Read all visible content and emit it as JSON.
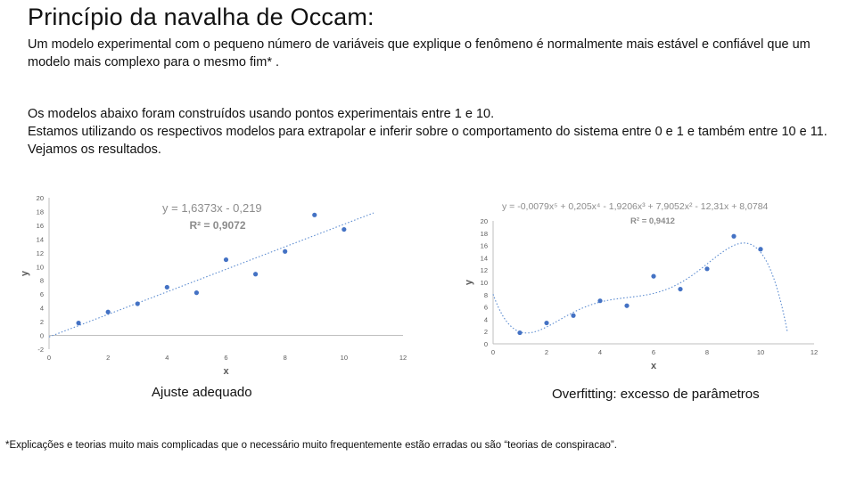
{
  "slide": {
    "title": "Princípio da navalha de Occam:",
    "paragraph1": "Um modelo experimental com o pequeno número de variáveis que explique o fenômeno é normalmente mais estável e confiável que um modelo mais complexo para o mesmo fim* .",
    "paragraph2_line1": "Os modelos abaixo foram construídos usando pontos experimentais entre 1 e 10.",
    "paragraph2_line2": "Estamos utilizando os respectivos modelos para extrapolar e inferir sobre o comportamento do sistema entre 0 e 1 e também entre 10 e 11. Vejamos os resultados.",
    "caption_left": "Ajuste adequado",
    "caption_right": "Overfitting: excesso de parâmetros",
    "footnote": "*Explicações e teorias muito mais complicadas que o necessário muito frequentemente estão erradas  ou são “teorias de conspiracao”."
  },
  "colors": {
    "points": "#4472c4",
    "fit_line": "#5b8bd0",
    "axis": "#bfbfbf",
    "tick_text": "#595959",
    "eq_text": "#8c8c8c"
  },
  "chart_data": [
    {
      "type": "scatter",
      "xlabel": "x",
      "ylabel": "y",
      "xlim": [
        0,
        12
      ],
      "ylim": [
        -2,
        20
      ],
      "xticks": [
        0,
        2,
        4,
        6,
        8,
        10,
        12
      ],
      "yticks": [
        -2,
        0,
        2,
        4,
        6,
        8,
        10,
        12,
        14,
        16,
        18,
        20
      ],
      "points": {
        "x": [
          1,
          2,
          3,
          4,
          5,
          6,
          7,
          8,
          9,
          10
        ],
        "y": [
          1.8,
          3.4,
          4.6,
          7.0,
          6.2,
          11.0,
          8.9,
          12.2,
          17.5,
          15.4
        ]
      },
      "trendline": {
        "kind": "linear",
        "slope": 1.6373,
        "intercept": -0.219,
        "x_range": [
          0,
          11
        ]
      },
      "equation": "y = 1,6373x - 0,219",
      "r2": "R² = 0,9072",
      "grid": false
    },
    {
      "type": "scatter",
      "xlabel": "x",
      "ylabel": "y",
      "xlim": [
        0,
        12
      ],
      "ylim": [
        0,
        20
      ],
      "xticks": [
        0,
        2,
        4,
        6,
        8,
        10,
        12
      ],
      "yticks": [
        0,
        2,
        4,
        6,
        8,
        10,
        12,
        14,
        16,
        18,
        20
      ],
      "points": {
        "x": [
          1,
          2,
          3,
          4,
          5,
          6,
          7,
          8,
          9,
          10
        ],
        "y": [
          1.8,
          3.4,
          4.6,
          7.0,
          6.2,
          11.0,
          8.9,
          12.2,
          17.5,
          15.4
        ]
      },
      "trendline": {
        "kind": "poly5",
        "coefficients": [
          8.0784,
          -12.31,
          7.9052,
          -1.9206,
          0.205,
          -0.0079
        ],
        "x_range": [
          0,
          11
        ]
      },
      "equation": "y = -0,0079x⁵ + 0,205x⁴ - 1,9206x³ + 7,9052x² - 12,31x + 8,0784",
      "r2": "R² = 0,9412",
      "grid": false
    }
  ]
}
